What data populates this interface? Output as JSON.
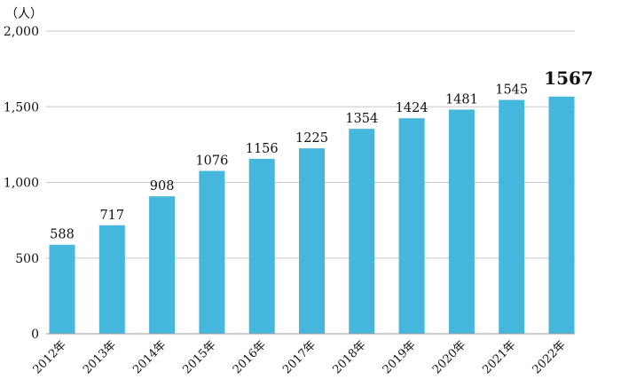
{
  "chart_data": {
    "type": "bar",
    "title": "",
    "unit_label": "（人）",
    "xlabel": "",
    "ylabel": "",
    "ylim": [
      0,
      2000
    ],
    "y_ticks": [
      {
        "value": 0,
        "label": "0"
      },
      {
        "value": 500,
        "label": "500"
      },
      {
        "value": 1000,
        "label": "1,000"
      },
      {
        "value": 1500,
        "label": "1,500"
      },
      {
        "value": 2000,
        "label": "2,000"
      }
    ],
    "grid": true,
    "bar_color": "#45b7dc",
    "grid_color": "#c8c8c8",
    "categories": [
      "2012年",
      "2013年",
      "2014年",
      "2015年",
      "2016年",
      "2017年",
      "2018年",
      "2019年",
      "2020年",
      "2021年",
      "2022年"
    ],
    "values": [
      588,
      717,
      908,
      1076,
      1156,
      1225,
      1354,
      1424,
      1481,
      1545,
      1567
    ],
    "data_labels": [
      "588",
      "717",
      "908",
      "1076",
      "1156",
      "1225",
      "1354",
      "1424",
      "1481",
      "1545",
      "1567"
    ],
    "highlight_index": 10
  }
}
